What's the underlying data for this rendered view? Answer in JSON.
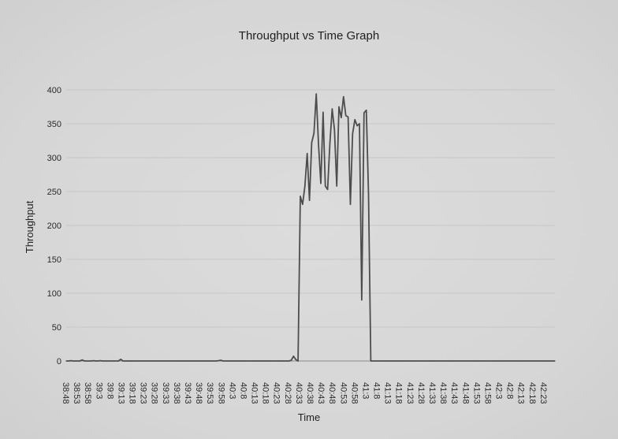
{
  "chart_data": {
    "type": "line",
    "title": "Throughput vs Time Graph",
    "xlabel": "Time",
    "ylabel": "Throughput",
    "ylim": [
      0,
      400
    ],
    "yticks": [
      0,
      50,
      100,
      150,
      200,
      250,
      300,
      350,
      400
    ],
    "grid": "horizontal",
    "xtick_labels": [
      "38:48",
      "38:53",
      "38:58",
      "39:3",
      "39:8",
      "39:13",
      "39:18",
      "39:23",
      "39:28",
      "39:33",
      "39:38",
      "39:43",
      "39:48",
      "39:53",
      "39:58",
      "40:3",
      "40:8",
      "40:13",
      "40:18",
      "40:23",
      "40:28",
      "40:33",
      "40:38",
      "40:43",
      "40:48",
      "40:53",
      "40:58",
      "41:3",
      "41:8",
      "41:13",
      "41:18",
      "41:23",
      "41:28",
      "41:33",
      "41:38",
      "41:43",
      "41:48",
      "41:53",
      "41:58",
      "42:3",
      "42:8",
      "42:13",
      "42:18",
      "42:23"
    ],
    "x_seconds_start": 0,
    "x_seconds_end": 215,
    "series": [
      {
        "line_color": "#4d4d4d",
        "points": [
          [
            0,
            0
          ],
          [
            1,
            0
          ],
          [
            2,
            0.5
          ],
          [
            3,
            0
          ],
          [
            4,
            0
          ],
          [
            5,
            0
          ],
          [
            6,
            0
          ],
          [
            7,
            1.5
          ],
          [
            8,
            0
          ],
          [
            9,
            0
          ],
          [
            10,
            0
          ],
          [
            11,
            0
          ],
          [
            12,
            0.5
          ],
          [
            13,
            0
          ],
          [
            14,
            0
          ],
          [
            15,
            0.5
          ],
          [
            16,
            0
          ],
          [
            17,
            0
          ],
          [
            18,
            0
          ],
          [
            19,
            0
          ],
          [
            20,
            0
          ],
          [
            21,
            0
          ],
          [
            22,
            0
          ],
          [
            23,
            0
          ],
          [
            24,
            2.5
          ],
          [
            25,
            0
          ],
          [
            26,
            0
          ],
          [
            27,
            0
          ],
          [
            28,
            0
          ],
          [
            29,
            0
          ],
          [
            30,
            0
          ],
          [
            31,
            0
          ],
          [
            32,
            0
          ],
          [
            33,
            0
          ],
          [
            34,
            0
          ],
          [
            35,
            0
          ],
          [
            36,
            0
          ],
          [
            37,
            0
          ],
          [
            38,
            0
          ],
          [
            39,
            0
          ],
          [
            40,
            0
          ],
          [
            41,
            0
          ],
          [
            42,
            0
          ],
          [
            43,
            0
          ],
          [
            44,
            0
          ],
          [
            45,
            0
          ],
          [
            46,
            0
          ],
          [
            47,
            0
          ],
          [
            48,
            0
          ],
          [
            49,
            0
          ],
          [
            50,
            0
          ],
          [
            51,
            0
          ],
          [
            52,
            0
          ],
          [
            53,
            0
          ],
          [
            54,
            0
          ],
          [
            55,
            0
          ],
          [
            56,
            0
          ],
          [
            57,
            0
          ],
          [
            58,
            0
          ],
          [
            59,
            0
          ],
          [
            60,
            0
          ],
          [
            61,
            0
          ],
          [
            62,
            0
          ],
          [
            63,
            0
          ],
          [
            64,
            0
          ],
          [
            65,
            0
          ],
          [
            66,
            0
          ],
          [
            67,
            0.5
          ],
          [
            68,
            1
          ],
          [
            69,
            0
          ],
          [
            70,
            0
          ],
          [
            71,
            0
          ],
          [
            72,
            0
          ],
          [
            73,
            0
          ],
          [
            74,
            0
          ],
          [
            75,
            0
          ],
          [
            76,
            0
          ],
          [
            77,
            0
          ],
          [
            78,
            0
          ],
          [
            79,
            0
          ],
          [
            80,
            0
          ],
          [
            81,
            0
          ],
          [
            82,
            0
          ],
          [
            83,
            0
          ],
          [
            84,
            0
          ],
          [
            85,
            0
          ],
          [
            86,
            0
          ],
          [
            87,
            0
          ],
          [
            88,
            0
          ],
          [
            89,
            0
          ],
          [
            90,
            0
          ],
          [
            91,
            0
          ],
          [
            92,
            0
          ],
          [
            93,
            0
          ],
          [
            94,
            0
          ],
          [
            95,
            0
          ],
          [
            96,
            0
          ],
          [
            97,
            0
          ],
          [
            98,
            0
          ],
          [
            99,
            1
          ],
          [
            100,
            7
          ],
          [
            101,
            2
          ],
          [
            102,
            0
          ],
          [
            103,
            243
          ],
          [
            104,
            231
          ],
          [
            105,
            258
          ],
          [
            106,
            306
          ],
          [
            107,
            237
          ],
          [
            108,
            322
          ],
          [
            109,
            336
          ],
          [
            110,
            394
          ],
          [
            111,
            319
          ],
          [
            112,
            262
          ],
          [
            113,
            367
          ],
          [
            114,
            258
          ],
          [
            115,
            253
          ],
          [
            116,
            321
          ],
          [
            117,
            372
          ],
          [
            118,
            341
          ],
          [
            119,
            258
          ],
          [
            120,
            375
          ],
          [
            121,
            359
          ],
          [
            122,
            390
          ],
          [
            123,
            362
          ],
          [
            124,
            360
          ],
          [
            125,
            231
          ],
          [
            126,
            335
          ],
          [
            127,
            356
          ],
          [
            128,
            347
          ],
          [
            129,
            350
          ],
          [
            130,
            90
          ],
          [
            131,
            366
          ],
          [
            132,
            370
          ],
          [
            133,
            247
          ],
          [
            134,
            0
          ],
          [
            135,
            0
          ],
          [
            140,
            0
          ],
          [
            150,
            0
          ],
          [
            160,
            0
          ],
          [
            170,
            0
          ],
          [
            180,
            0
          ],
          [
            190,
            0
          ],
          [
            200,
            0
          ],
          [
            210,
            0
          ],
          [
            215,
            0
          ]
        ]
      }
    ]
  }
}
